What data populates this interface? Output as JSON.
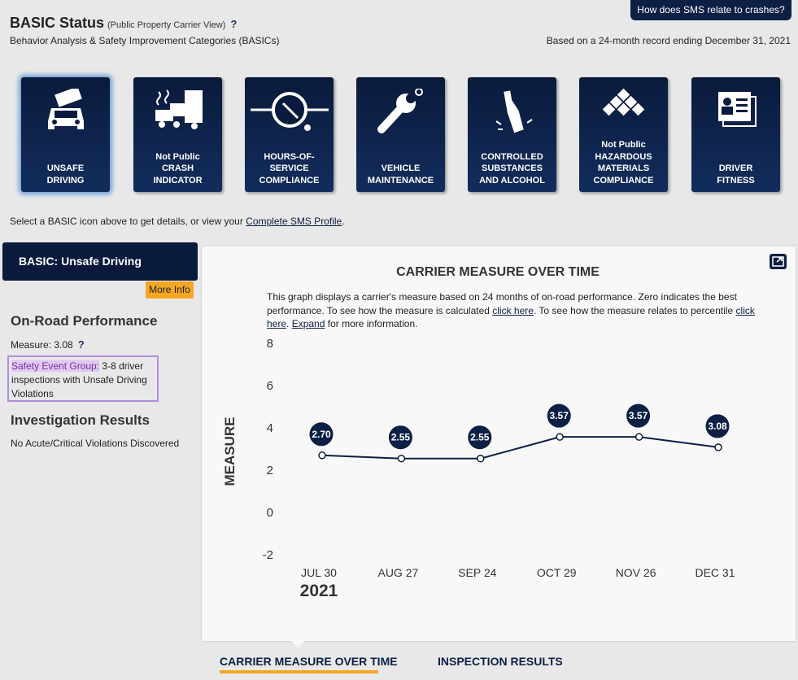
{
  "header": {
    "title": "BASIC Status",
    "subtitle": "(Public Property Carrier View)",
    "help": "?",
    "description": "Behavior Analysis & Safety Improvement Categories (BASICs)",
    "sms_button": "How does SMS relate to crashes?",
    "record_text": "Based on a 24-month record ending December 31, 2021"
  },
  "tiles": [
    {
      "icon": "truck-front-icon",
      "label": "UNSAFE\nDRIVING",
      "status": "",
      "active": true
    },
    {
      "icon": "crash-truck-icon",
      "label": "CRASH\nINDICATOR",
      "status": "Not Public"
    },
    {
      "icon": "clock-icon",
      "label": "HOURS-OF-\nSERVICE\nCOMPLIANCE",
      "status": ""
    },
    {
      "icon": "wrench-icon",
      "label": "VEHICLE\nMAINTENANCE",
      "status": ""
    },
    {
      "icon": "bottle-icon",
      "label": "CONTROLLED\nSUBSTANCES\nAND ALCOHOL",
      "status": ""
    },
    {
      "icon": "hazmat-diamond-icon",
      "label": "HAZARDOUS\nMATERIALS\nCOMPLIANCE",
      "status": "Not Public"
    },
    {
      "icon": "id-card-icon",
      "label": "DRIVER\nFITNESS",
      "status": ""
    }
  ],
  "select_text": "Select a BASIC icon above to get details, or view your ",
  "select_link": "Complete SMS Profile",
  "select_end": ".",
  "sidebar": {
    "basic_title": "BASIC:  Unsafe Driving",
    "more_info": "More Info",
    "on_road_title": "On-Road Performance",
    "measure": "Measure: 3.08",
    "help": "?",
    "seg_label": "Safety Event Group:",
    "seg_text": " 3-8 driver inspections with Unsafe Driving Violations",
    "inv_title": "Investigation Results",
    "inv_text": "No Acute/Critical Violations Discovered"
  },
  "panel": {
    "title": "CARRIER MEASURE OVER TIME",
    "desc1": "This graph displays a carrier's measure based on 24 months of on-road performance. Zero indicates the best performance. To see how the measure is calculated ",
    "link1": "click here",
    "desc2": ". To see how the measure relates to percentile ",
    "link2": "click here",
    "desc3": ". ",
    "link3": "Expand",
    "desc4": " for more information."
  },
  "chart_data": {
    "type": "line",
    "ylabel": "MEASURE",
    "ylim": [
      -2,
      8
    ],
    "yticks": [
      -2,
      0,
      2,
      4,
      6,
      8
    ],
    "categories": [
      "JUL 30",
      "AUG 27",
      "SEP 24",
      "OCT 29",
      "NOV 26",
      "DEC 31"
    ],
    "year_label": "2021",
    "series": [
      {
        "values": [
          2.7,
          2.55,
          2.55,
          3.57,
          3.57,
          3.08
        ]
      }
    ],
    "data_labels": [
      "2.70",
      "2.55",
      "2.55",
      "3.57",
      "3.57",
      "3.08"
    ],
    "grid": false
  },
  "tabs": [
    {
      "label": "CARRIER MEASURE OVER TIME",
      "active": true
    },
    {
      "label": "INSPECTION RESULTS",
      "active": false
    }
  ]
}
